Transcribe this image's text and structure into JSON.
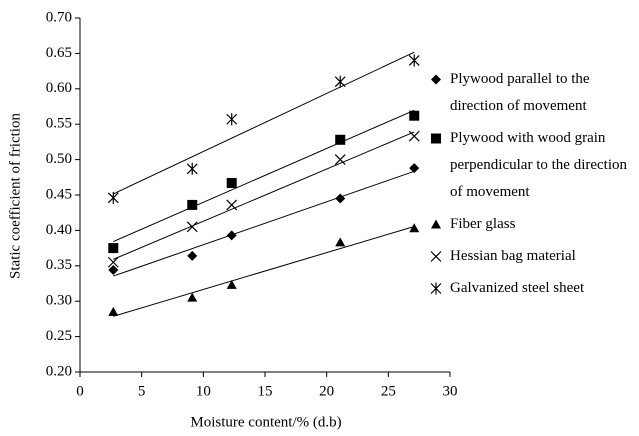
{
  "chart_data": {
    "type": "scatter",
    "xlabel": "Moisture content/% (d.b)",
    "ylabel": "Static coefficient of friction",
    "x": [
      2.7,
      9.1,
      12.3,
      21.1,
      27.1
    ],
    "series": [
      {
        "name": "Plywood parallel to the direction of movement",
        "color": "#000000",
        "marker": "diamond",
        "values": [
          0.344,
          0.364,
          0.393,
          0.445,
          0.488
        ]
      },
      {
        "name": "Plywood with wood grain perpendicular to the direction of movement",
        "color": "#000000",
        "marker": "square",
        "values": [
          0.375,
          0.436,
          0.467,
          0.528,
          0.562
        ]
      },
      {
        "name": "Fiber glass",
        "color": "#000000",
        "marker": "triangle",
        "values": [
          0.285,
          0.305,
          0.323,
          0.383,
          0.403
        ]
      },
      {
        "name": "Hessian bag material",
        "color": "#000000",
        "marker": "x",
        "values": [
          0.355,
          0.405,
          0.436,
          0.5,
          0.533
        ]
      },
      {
        "name": "Galvanized steel sheet",
        "color": "#000000",
        "marker": "star",
        "values": [
          0.446,
          0.487,
          0.557,
          0.61,
          0.64
        ]
      }
    ],
    "trendline": true,
    "xlim": [
      0,
      30
    ],
    "xticks": [
      0,
      5,
      10,
      15,
      20,
      25,
      30
    ],
    "ylim": [
      0.2,
      0.7
    ],
    "yticks": [
      {
        "value": 0.2,
        "label": "0.20"
      },
      {
        "value": 0.25,
        "label": "0.25"
      },
      {
        "value": 0.3,
        "label": "0.30"
      },
      {
        "value": 0.35,
        "label": "0.35"
      },
      {
        "value": 0.4,
        "label": "0.40"
      },
      {
        "value": 0.45,
        "label": "0.45"
      },
      {
        "value": 0.5,
        "label": "0.50"
      },
      {
        "value": 0.55,
        "label": "0.55"
      },
      {
        "value": 0.6,
        "label": "0.60"
      },
      {
        "value": 0.65,
        "label": "0.65"
      },
      {
        "value": 0.7,
        "label": "0.70"
      }
    ]
  }
}
